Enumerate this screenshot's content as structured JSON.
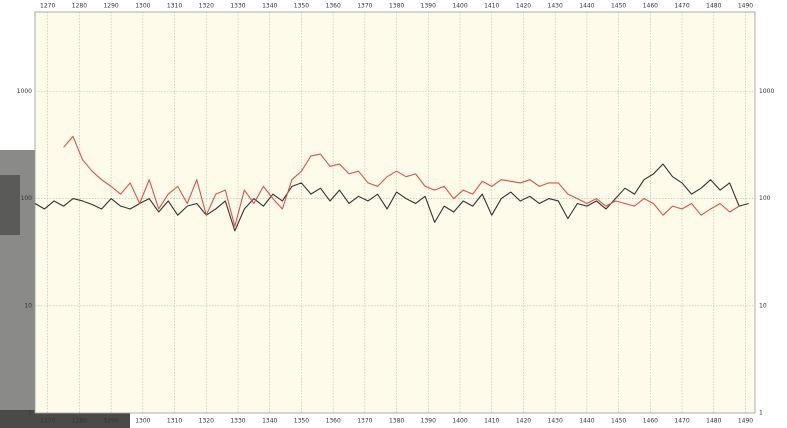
{
  "chart_data": {
    "type": "line",
    "yscale": "log",
    "grid": true,
    "xlim": [
      1266,
      1493
    ],
    "xticks": [
      1270,
      1280,
      1290,
      1300,
      1310,
      1320,
      1330,
      1340,
      1350,
      1360,
      1370,
      1380,
      1390,
      1400,
      1410,
      1420,
      1430,
      1440,
      1450,
      1460,
      1470,
      1480,
      1490
    ],
    "ylim": [
      1,
      5500
    ],
    "yticks": [
      1,
      10,
      100,
      1000
    ],
    "series": [
      {
        "color": "#333333",
        "x": [
          1266,
          1269,
          1272,
          1275,
          1278,
          1281,
          1284,
          1287,
          1290,
          1293,
          1296,
          1299,
          1302,
          1305,
          1308,
          1311,
          1314,
          1317,
          1320,
          1323,
          1326,
          1329,
          1332,
          1335,
          1338,
          1341,
          1344,
          1347,
          1350,
          1353,
          1356,
          1359,
          1362,
          1365,
          1368,
          1371,
          1374,
          1377,
          1380,
          1383,
          1386,
          1389,
          1392,
          1395,
          1398,
          1401,
          1404,
          1407,
          1410,
          1413,
          1416,
          1419,
          1422,
          1425,
          1428,
          1431,
          1434,
          1437,
          1440,
          1443,
          1446,
          1449,
          1452,
          1455,
          1458,
          1461,
          1464,
          1467,
          1470,
          1473,
          1476,
          1479,
          1482,
          1485,
          1488,
          1491
        ],
        "values": [
          90,
          80,
          95,
          85,
          100,
          95,
          88,
          80,
          100,
          85,
          80,
          90,
          100,
          75,
          95,
          70,
          85,
          90,
          70,
          80,
          95,
          50,
          80,
          100,
          85,
          110,
          95,
          130,
          140,
          110,
          125,
          95,
          120,
          90,
          105,
          95,
          110,
          80,
          115,
          100,
          90,
          105,
          60,
          85,
          75,
          95,
          85,
          110,
          70,
          100,
          115,
          95,
          105,
          90,
          100,
          95,
          65,
          90,
          85,
          95,
          80,
          100,
          125,
          110,
          150,
          170,
          210,
          160,
          140,
          110,
          125,
          150,
          120,
          140,
          85,
          90
        ]
      },
      {
        "color": "#d9534f",
        "x": [
          1275,
          1278,
          1281,
          1284,
          1287,
          1290,
          1293,
          1296,
          1299,
          1302,
          1305,
          1308,
          1311,
          1314,
          1317,
          1320,
          1323,
          1326,
          1329,
          1332,
          1335,
          1338,
          1341,
          1344,
          1347,
          1350,
          1353,
          1356,
          1359,
          1362,
          1365,
          1368,
          1371,
          1374,
          1377,
          1380,
          1383,
          1386,
          1389,
          1392,
          1395,
          1398,
          1401,
          1404,
          1407,
          1410,
          1413,
          1416,
          1419,
          1422,
          1425,
          1428,
          1431,
          1434,
          1437,
          1440,
          1443,
          1446,
          1449,
          1452,
          1455,
          1458,
          1461,
          1464,
          1467,
          1470,
          1473,
          1476,
          1479,
          1482,
          1485,
          1488
        ],
        "values": [
          300,
          380,
          230,
          180,
          150,
          130,
          110,
          140,
          90,
          150,
          80,
          110,
          130,
          90,
          150,
          70,
          110,
          120,
          55,
          120,
          90,
          130,
          100,
          80,
          150,
          180,
          250,
          260,
          200,
          210,
          170,
          180,
          140,
          130,
          160,
          180,
          160,
          170,
          130,
          120,
          130,
          100,
          120,
          110,
          145,
          130,
          150,
          145,
          140,
          150,
          130,
          140,
          140,
          110,
          100,
          90,
          100,
          85,
          95,
          90,
          85,
          100,
          90,
          70,
          85,
          80,
          90,
          70,
          80,
          90,
          75,
          85
        ]
      }
    ]
  }
}
